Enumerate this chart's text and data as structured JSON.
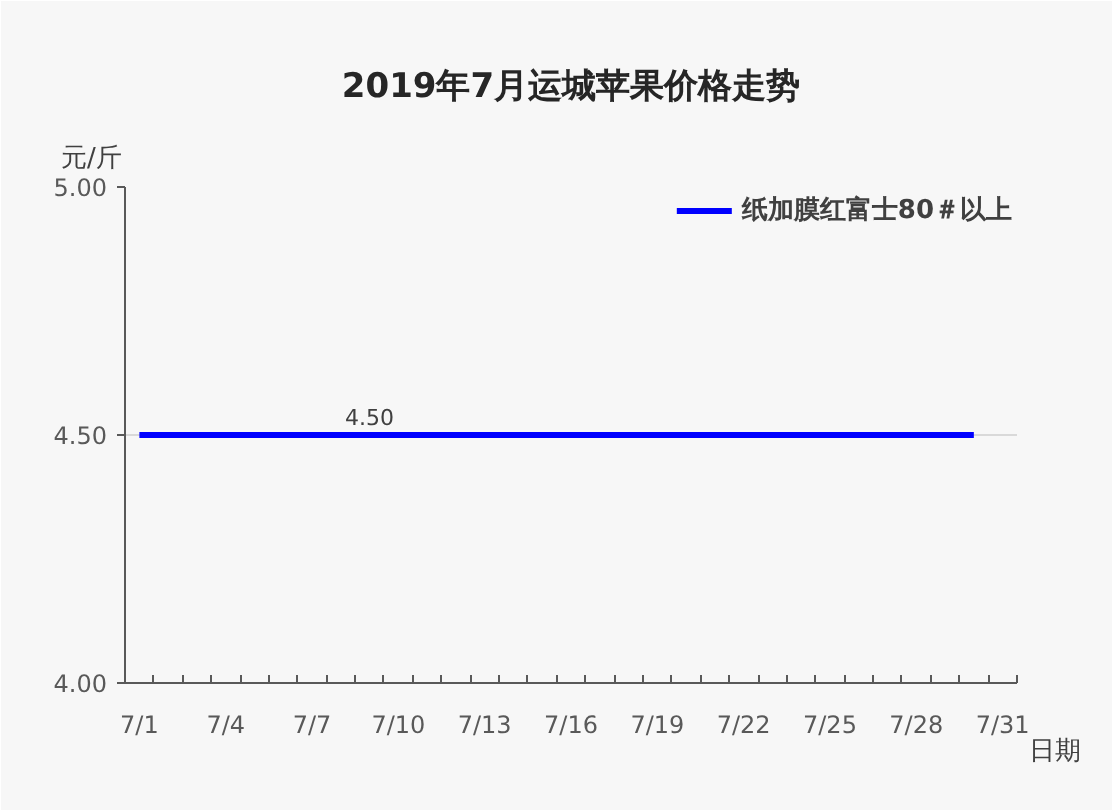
{
  "chart_data": {
    "type": "line",
    "title": "2019年7月运城苹果价格走势",
    "ylabel": "元/斤",
    "xlabel": "日期",
    "categories": [
      "7/1",
      null,
      null,
      "7/4",
      null,
      null,
      "7/7",
      null,
      null,
      "7/10",
      null,
      null,
      "7/13",
      null,
      null,
      "7/16",
      null,
      null,
      "7/19",
      null,
      null,
      "7/22",
      null,
      null,
      "7/25",
      null,
      null,
      "7/28",
      null,
      null,
      "7/31"
    ],
    "series": [
      {
        "name": "纸加膜红富士80＃以上",
        "color": "#0000ff",
        "values": [
          4.5,
          4.5,
          4.5,
          4.5,
          4.5,
          4.5,
          4.5,
          4.5,
          4.5,
          4.5,
          4.5,
          4.5,
          4.5,
          4.5,
          4.5,
          4.5,
          4.5,
          4.5,
          4.5,
          4.5,
          4.5,
          4.5,
          4.5,
          4.5,
          4.5,
          4.5,
          4.5,
          4.5,
          4.5,
          4.5,
          null
        ],
        "value_labels": [
          null,
          null,
          null,
          null,
          null,
          null,
          null,
          null,
          "4.50",
          null,
          null,
          null,
          null,
          null,
          null,
          null,
          null,
          null,
          null,
          null,
          null,
          null,
          null,
          null,
          null,
          null,
          null,
          null,
          null,
          null,
          null
        ]
      }
    ],
    "ylim": [
      4,
      5
    ],
    "yticks": [
      {
        "value": 4,
        "label": "4.00"
      },
      {
        "value": 4.5,
        "label": "4.50"
      },
      {
        "value": 5,
        "label": "5.00"
      }
    ],
    "grid": "y",
    "legend": "top right"
  }
}
